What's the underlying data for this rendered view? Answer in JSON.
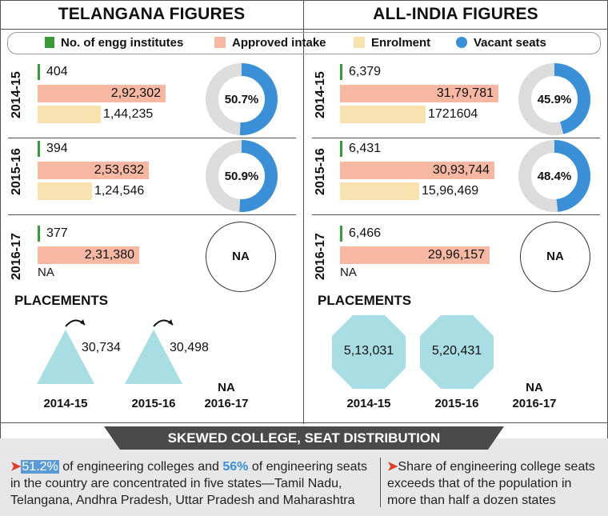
{
  "colors": {
    "institutes": "#3a9a3a",
    "intake": "#f6b8a2",
    "enrolment": "#f8e2b0",
    "vacant": "#3a8fd6",
    "donut_rest": "#dcdcdc",
    "placement_shape": "#a8dde3",
    "banner": "#4a4a4a"
  },
  "titles": {
    "left": "TELANGANA FIGURES",
    "right": "ALL-INDIA FIGURES"
  },
  "legend": {
    "institutes": "No. of engg institutes",
    "intake": "Approved intake",
    "enrolment": "Enrolment",
    "vacant": "Vacant seats"
  },
  "chart_data": [
    {
      "type": "bar",
      "region": "Telangana",
      "rows": [
        {
          "year": "2014-15",
          "institutes": 404,
          "institutes_label": "404",
          "intake": 292302,
          "intake_label": "2,92,302",
          "enrolment": 144235,
          "enrolment_label": "1,44,235",
          "vacant_pct": 50.7,
          "vacant_label": "50.7%"
        },
        {
          "year": "2015-16",
          "institutes": 394,
          "institutes_label": "394",
          "intake": 253632,
          "intake_label": "2,53,632",
          "enrolment": 124546,
          "enrolment_label": "1,24,546",
          "vacant_pct": 50.9,
          "vacant_label": "50.9%"
        },
        {
          "year": "2016-17",
          "institutes": 377,
          "institutes_label": "377",
          "intake": 231380,
          "intake_label": "2,31,380",
          "enrolment": null,
          "enrolment_label": "NA",
          "vacant_pct": null,
          "vacant_label": "NA"
        }
      ],
      "placements_title": "PLACEMENTS",
      "placements": [
        {
          "year": "2014-15",
          "value": 30734,
          "label": "30,734"
        },
        {
          "year": "2015-16",
          "value": 30498,
          "label": "30,498"
        },
        {
          "year": "2016-17",
          "value": null,
          "label": "NA"
        }
      ]
    },
    {
      "type": "bar",
      "region": "All-India",
      "rows": [
        {
          "year": "2014-15",
          "institutes": 6379,
          "institutes_label": "6,379",
          "intake": 3179781,
          "intake_label": "31,79,781",
          "enrolment": 1721604,
          "enrolment_label": "1721604",
          "vacant_pct": 45.9,
          "vacant_label": "45.9%"
        },
        {
          "year": "2015-16",
          "institutes": 6431,
          "institutes_label": "6,431",
          "intake": 3093744,
          "intake_label": "30,93,744",
          "enrolment": 1596469,
          "enrolment_label": "15,96,469",
          "vacant_pct": 48.4,
          "vacant_label": "48.4%"
        },
        {
          "year": "2016-17",
          "institutes": 6466,
          "institutes_label": "6,466",
          "intake": 2996157,
          "intake_label": "29,96,157",
          "enrolment": null,
          "enrolment_label": "NA",
          "vacant_pct": null,
          "vacant_label": "NA"
        }
      ],
      "placements_title": "PLACEMENTS",
      "placements": [
        {
          "year": "2014-15",
          "value": 513031,
          "label": "5,13,031"
        },
        {
          "year": "2015-16",
          "value": 520431,
          "label": "5,20,431"
        },
        {
          "year": "2016-17",
          "value": null,
          "label": "NA"
        }
      ]
    }
  ],
  "banner": "SKEWED COLLEGE, SEAT DISTRIBUTION",
  "notes": {
    "left": {
      "pct1": "51.2%",
      "text1": " of engineering colleges and ",
      "pct2": "56%",
      "text2": " of engineering seats in the country are concentrated in five states—Tamil Nadu, Telangana, Andhra Pradesh, Uttar Pradesh and Maharashtra"
    },
    "right": "Share of engineering college seats exceeds that of the population in more than half a dozen states"
  },
  "arrow_glyph": "➤"
}
